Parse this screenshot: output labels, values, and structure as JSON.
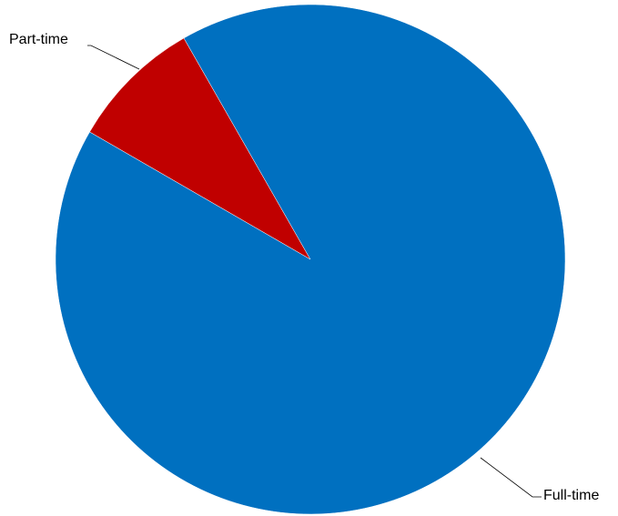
{
  "chart_data": {
    "type": "pie",
    "title": "",
    "slices": [
      {
        "label": "Part-time",
        "value": 8.4,
        "color": "#c00000"
      },
      {
        "label": "Full-time",
        "value": 91.6,
        "color": "#0070c0"
      }
    ],
    "start_angle_deg": -150,
    "legend": "none",
    "label_placement": "outside-with-leader-lines"
  }
}
